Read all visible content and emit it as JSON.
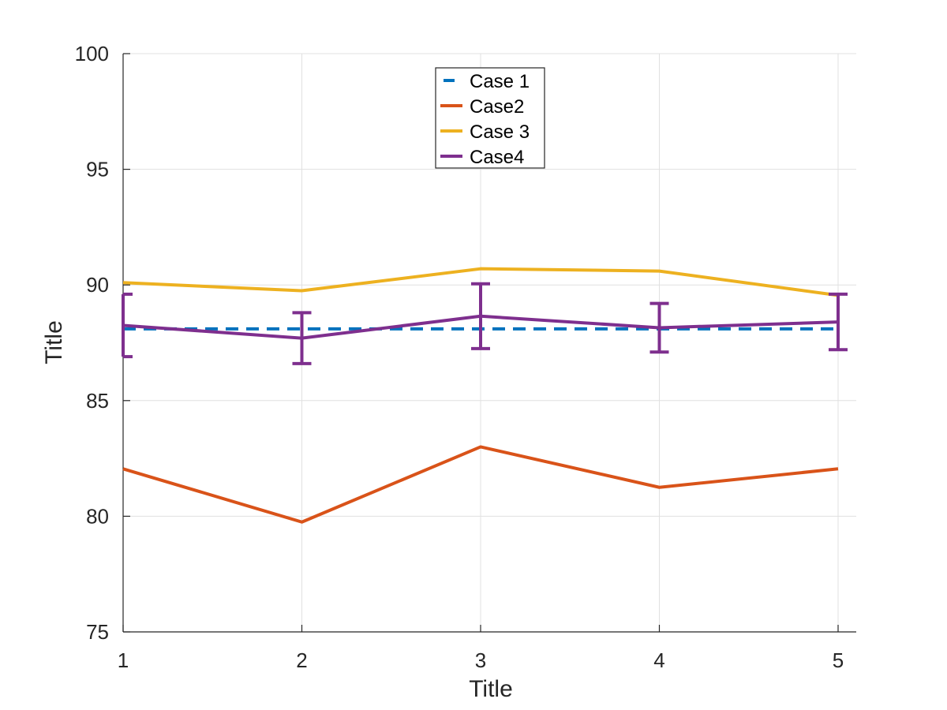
{
  "chart_data": {
    "type": "line",
    "xlabel": "Title",
    "ylabel": "Title",
    "xlim": [
      1,
      5
    ],
    "ylim": [
      75,
      100
    ],
    "x_ticks": [
      1,
      2,
      3,
      4,
      5
    ],
    "y_ticks": [
      75,
      80,
      85,
      90,
      95,
      100
    ],
    "grid": true,
    "legend_position": "top-center",
    "x": [
      1,
      2,
      3,
      4,
      5
    ],
    "series": [
      {
        "name": "Case 1",
        "values": [
          88.1,
          88.1,
          88.1,
          88.1,
          88.1
        ],
        "color": "#0072BD",
        "style": "dashed"
      },
      {
        "name": "Case2",
        "values": [
          82.05,
          79.75,
          83.0,
          81.25,
          82.05
        ],
        "color": "#D95319",
        "style": "solid"
      },
      {
        "name": "Case 3",
        "values": [
          90.1,
          89.75,
          90.7,
          90.6,
          89.55
        ],
        "color": "#EDB120",
        "style": "solid"
      },
      {
        "name": "Case4",
        "values": [
          88.25,
          87.7,
          88.65,
          88.15,
          88.4
        ],
        "color": "#7E2F8E",
        "style": "solid",
        "error": [
          1.35,
          1.1,
          1.4,
          1.05,
          1.2
        ]
      }
    ]
  }
}
